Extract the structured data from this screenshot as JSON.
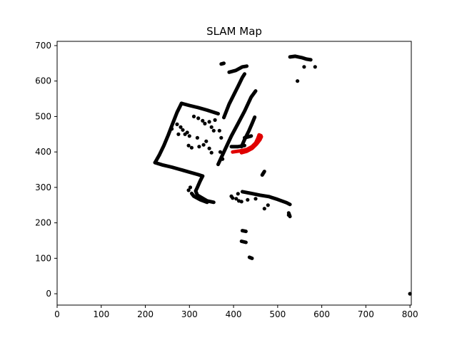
{
  "chart_data": {
    "type": "scatter",
    "title": "SLAM Map",
    "xlabel": "",
    "ylabel": "",
    "xlim": [
      0,
      803
    ],
    "ylim": [
      -32,
      712
    ],
    "xticks": [
      0,
      100,
      200,
      300,
      400,
      500,
      600,
      700,
      800
    ],
    "yticks": [
      0,
      100,
      200,
      300,
      400,
      500,
      600,
      700
    ],
    "grid": false,
    "series": [
      {
        "color": "#000000",
        "marker": "dot",
        "segments": [
          [
            [
              222,
              370
            ],
            [
              240,
              363
            ],
            [
              260,
              357
            ],
            [
              280,
              350
            ],
            [
              300,
              343
            ],
            [
              320,
              336
            ],
            [
              330,
              332
            ]
          ],
          [
            [
              222,
              370
            ],
            [
              232,
              392
            ],
            [
              242,
              418
            ],
            [
              252,
              448
            ],
            [
              262,
              480
            ],
            [
              272,
              512
            ],
            [
              282,
              537
            ]
          ],
          [
            [
              282,
              537
            ],
            [
              300,
              531
            ],
            [
              320,
              525
            ],
            [
              340,
              518
            ],
            [
              355,
              512
            ],
            [
              365,
              508
            ]
          ],
          [
            [
              330,
              332
            ],
            [
              324,
              317
            ],
            [
              318,
              300
            ],
            [
              314,
              290
            ],
            [
              318,
              278
            ],
            [
              340,
              262
            ],
            [
              355,
              258
            ]
          ],
          [
            [
              305,
              283
            ],
            [
              310,
              275
            ],
            [
              325,
              265
            ],
            [
              340,
              258
            ]
          ],
          [
            [
              395,
              415
            ],
            [
              410,
              415
            ],
            [
              425,
              418
            ]
          ],
          [
            [
              418,
              415
            ],
            [
              425,
              435
            ],
            [
              435,
              460
            ],
            [
              442,
              480
            ],
            [
              448,
              498
            ]
          ],
          [
            [
              425,
              440
            ],
            [
              440,
              445
            ]
          ],
          [
            [
              378,
              497
            ],
            [
              390,
              535
            ],
            [
              400,
              560
            ],
            [
              410,
              585
            ],
            [
              420,
              610
            ],
            [
              425,
              620
            ]
          ],
          [
            [
              390,
              625
            ],
            [
              405,
              630
            ],
            [
              420,
              640
            ],
            [
              430,
              642
            ]
          ],
          [
            [
              365,
              365
            ],
            [
              380,
              405
            ],
            [
              395,
              445
            ],
            [
              410,
              480
            ],
            [
              425,
              515
            ],
            [
              440,
              555
            ],
            [
              450,
              572
            ]
          ],
          [
            [
              465,
              335
            ],
            [
              470,
              345
            ]
          ],
          [
            [
              420,
              288
            ],
            [
              440,
              283
            ],
            [
              460,
              278
            ],
            [
              480,
              274
            ],
            [
              500,
              266
            ],
            [
              520,
              257
            ],
            [
              528,
              252
            ]
          ],
          [
            [
              525,
              228
            ],
            [
              528,
              218
            ]
          ],
          [
            [
              528,
              668
            ],
            [
              540,
              670
            ],
            [
              555,
              666
            ],
            [
              565,
              662
            ],
            [
              575,
              660
            ]
          ],
          [
            [
              372,
              648
            ],
            [
              378,
              650
            ]
          ],
          [
            [
              420,
              178
            ],
            [
              428,
              176
            ]
          ],
          [
            [
              418,
              148
            ],
            [
              428,
              145
            ]
          ],
          [
            [
              436,
              103
            ],
            [
              442,
              100
            ]
          ]
        ],
        "points": [
          [
            260,
            465
          ],
          [
            272,
            478
          ],
          [
            280,
            470
          ],
          [
            285,
            462
          ],
          [
            295,
            455
          ],
          [
            275,
            450
          ],
          [
            290,
            450
          ],
          [
            300,
            445
          ],
          [
            310,
            500
          ],
          [
            320,
            495
          ],
          [
            330,
            488
          ],
          [
            335,
            480
          ],
          [
            345,
            485
          ],
          [
            350,
            470
          ],
          [
            355,
            460
          ],
          [
            358,
            490
          ],
          [
            368,
            460
          ],
          [
            372,
            440
          ],
          [
            370,
            400
          ],
          [
            375,
            380
          ],
          [
            298,
            418
          ],
          [
            305,
            412
          ],
          [
            318,
            440
          ],
          [
            322,
            415
          ],
          [
            332,
            420
          ],
          [
            338,
            430
          ],
          [
            345,
            410
          ],
          [
            350,
            398
          ],
          [
            298,
            292
          ],
          [
            302,
            300
          ],
          [
            395,
            275
          ],
          [
            398,
            270
          ],
          [
            406,
            268
          ],
          [
            410,
            282
          ],
          [
            412,
            262
          ],
          [
            418,
            260
          ],
          [
            432,
            265
          ],
          [
            450,
            268
          ],
          [
            478,
            250
          ],
          [
            470,
            240
          ],
          [
            525,
            222
          ],
          [
            560,
            640
          ],
          [
            545,
            600
          ],
          [
            585,
            640
          ],
          [
            800,
            0
          ]
        ]
      },
      {
        "color": "#e00000",
        "marker": "dot",
        "segments": [
          [
            [
              398,
              400
            ],
            [
              415,
              403
            ],
            [
              430,
              407
            ],
            [
              442,
              415
            ],
            [
              450,
              425
            ],
            [
              455,
              438
            ],
            [
              458,
              448
            ]
          ],
          [
            [
              418,
              398
            ],
            [
              430,
              402
            ],
            [
              442,
              410
            ],
            [
              452,
              422
            ],
            [
              460,
              435
            ],
            [
              463,
              443
            ]
          ],
          [
            [
              458,
              448
            ],
            [
              462,
              446
            ]
          ]
        ],
        "points": []
      }
    ]
  }
}
